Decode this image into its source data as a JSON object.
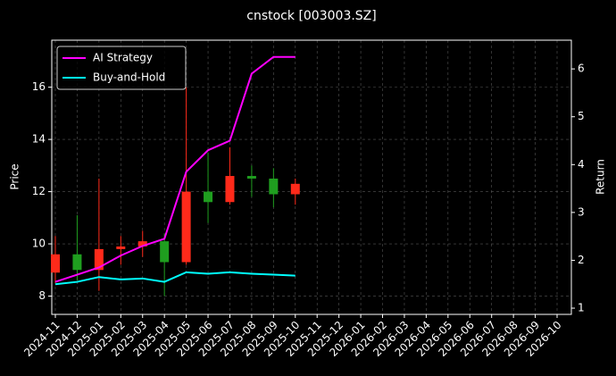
{
  "chart_data": {
    "type": "candlestick",
    "title": "cnstock [003003.SZ]",
    "ylabel": "Price",
    "y2label": "Return",
    "x": [
      "2024-11",
      "2024-12",
      "2025-01",
      "2025-02",
      "2025-03",
      "2025-04",
      "2025-05",
      "2025-06",
      "2025-07",
      "2025-08",
      "2025-09",
      "2025-10"
    ],
    "open": [
      8.9,
      9.6,
      9.0,
      9.8,
      9.9,
      10.1,
      9.3,
      12.0,
      11.6,
      12.6,
      12.5,
      11.9
    ],
    "high": [
      10.3,
      11.1,
      12.5,
      10.3,
      10.5,
      10.4,
      16.0,
      13.5,
      13.7,
      13.0,
      12.9,
      12.5
    ],
    "low": [
      8.5,
      8.6,
      8.2,
      9.2,
      9.5,
      8.0,
      9.2,
      10.8,
      11.5,
      11.8,
      11.4,
      11.5
    ],
    "close": [
      9.6,
      9.0,
      9.8,
      9.9,
      10.1,
      9.3,
      12.0,
      11.6,
      12.6,
      12.5,
      11.9,
      12.3
    ],
    "up_color": "#ff2a1a",
    "down_color": "#1f9e1f",
    "series": [
      {
        "name": "AI Strategy",
        "color": "#ff00ff",
        "axis": "y2",
        "values": [
          1.55,
          1.7,
          1.85,
          2.1,
          2.3,
          2.45,
          3.85,
          4.3,
          4.5,
          5.9,
          6.25,
          6.25
        ]
      },
      {
        "name": "Buy-and-Hold",
        "color": "#00ffff",
        "axis": "y2",
        "values": [
          1.5,
          1.55,
          1.65,
          1.6,
          1.62,
          1.55,
          1.75,
          1.72,
          1.75,
          1.72,
          1.7,
          1.68
        ]
      }
    ],
    "xlim": [
      "2024-11",
      "2026-10"
    ],
    "xticks": [
      "2024-11",
      "2024-12",
      "2025-01",
      "2025-02",
      "2025-03",
      "2025-04",
      "2025-05",
      "2025-06",
      "2025-07",
      "2025-08",
      "2025-09",
      "2025-10",
      "2025-11",
      "2025-12",
      "2026-01",
      "2026-02",
      "2026-03",
      "2026-04",
      "2026-05",
      "2026-06",
      "2026-07",
      "2026-08",
      "2026-09",
      "2026-10"
    ],
    "ylim": [
      7.3,
      17.8
    ],
    "yticks": [
      8,
      10,
      12,
      14,
      16
    ],
    "y2lim": [
      0.87,
      6.6
    ],
    "y2ticks": [
      1,
      2,
      3,
      4,
      5,
      6
    ],
    "grid": true,
    "legend": "upper left"
  }
}
